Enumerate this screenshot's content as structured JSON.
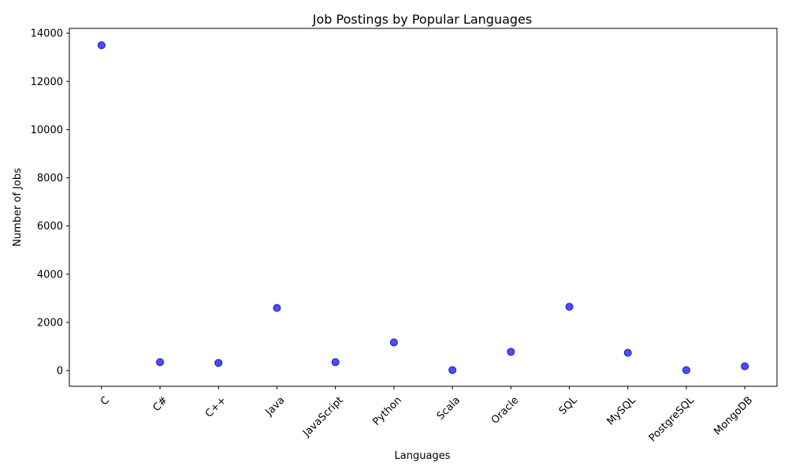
{
  "chart_data": {
    "type": "scatter",
    "title": "Job Postings by Popular Languages",
    "xlabel": "Languages",
    "ylabel": "Number of Jobs",
    "categories": [
      "C",
      "C#",
      "C++",
      "Java",
      "JavaScript",
      "Python",
      "Scala",
      "Oracle",
      "SQL",
      "MySQL",
      "PostgreSQL",
      "MongoDB"
    ],
    "values": [
      13500,
      350,
      320,
      2600,
      350,
      1170,
      20,
      780,
      2650,
      740,
      20,
      180
    ],
    "ylim": [
      -650,
      14200
    ],
    "yticks": [
      0,
      2000,
      4000,
      6000,
      8000,
      10000,
      12000,
      14000
    ],
    "ytick_labels": [
      "0",
      "2000",
      "4000",
      "6000",
      "8000",
      "10000",
      "12000",
      "14000"
    ],
    "grid": false,
    "marker_color": "#0000ff",
    "marker_edge_color": "#1a1ab4"
  }
}
